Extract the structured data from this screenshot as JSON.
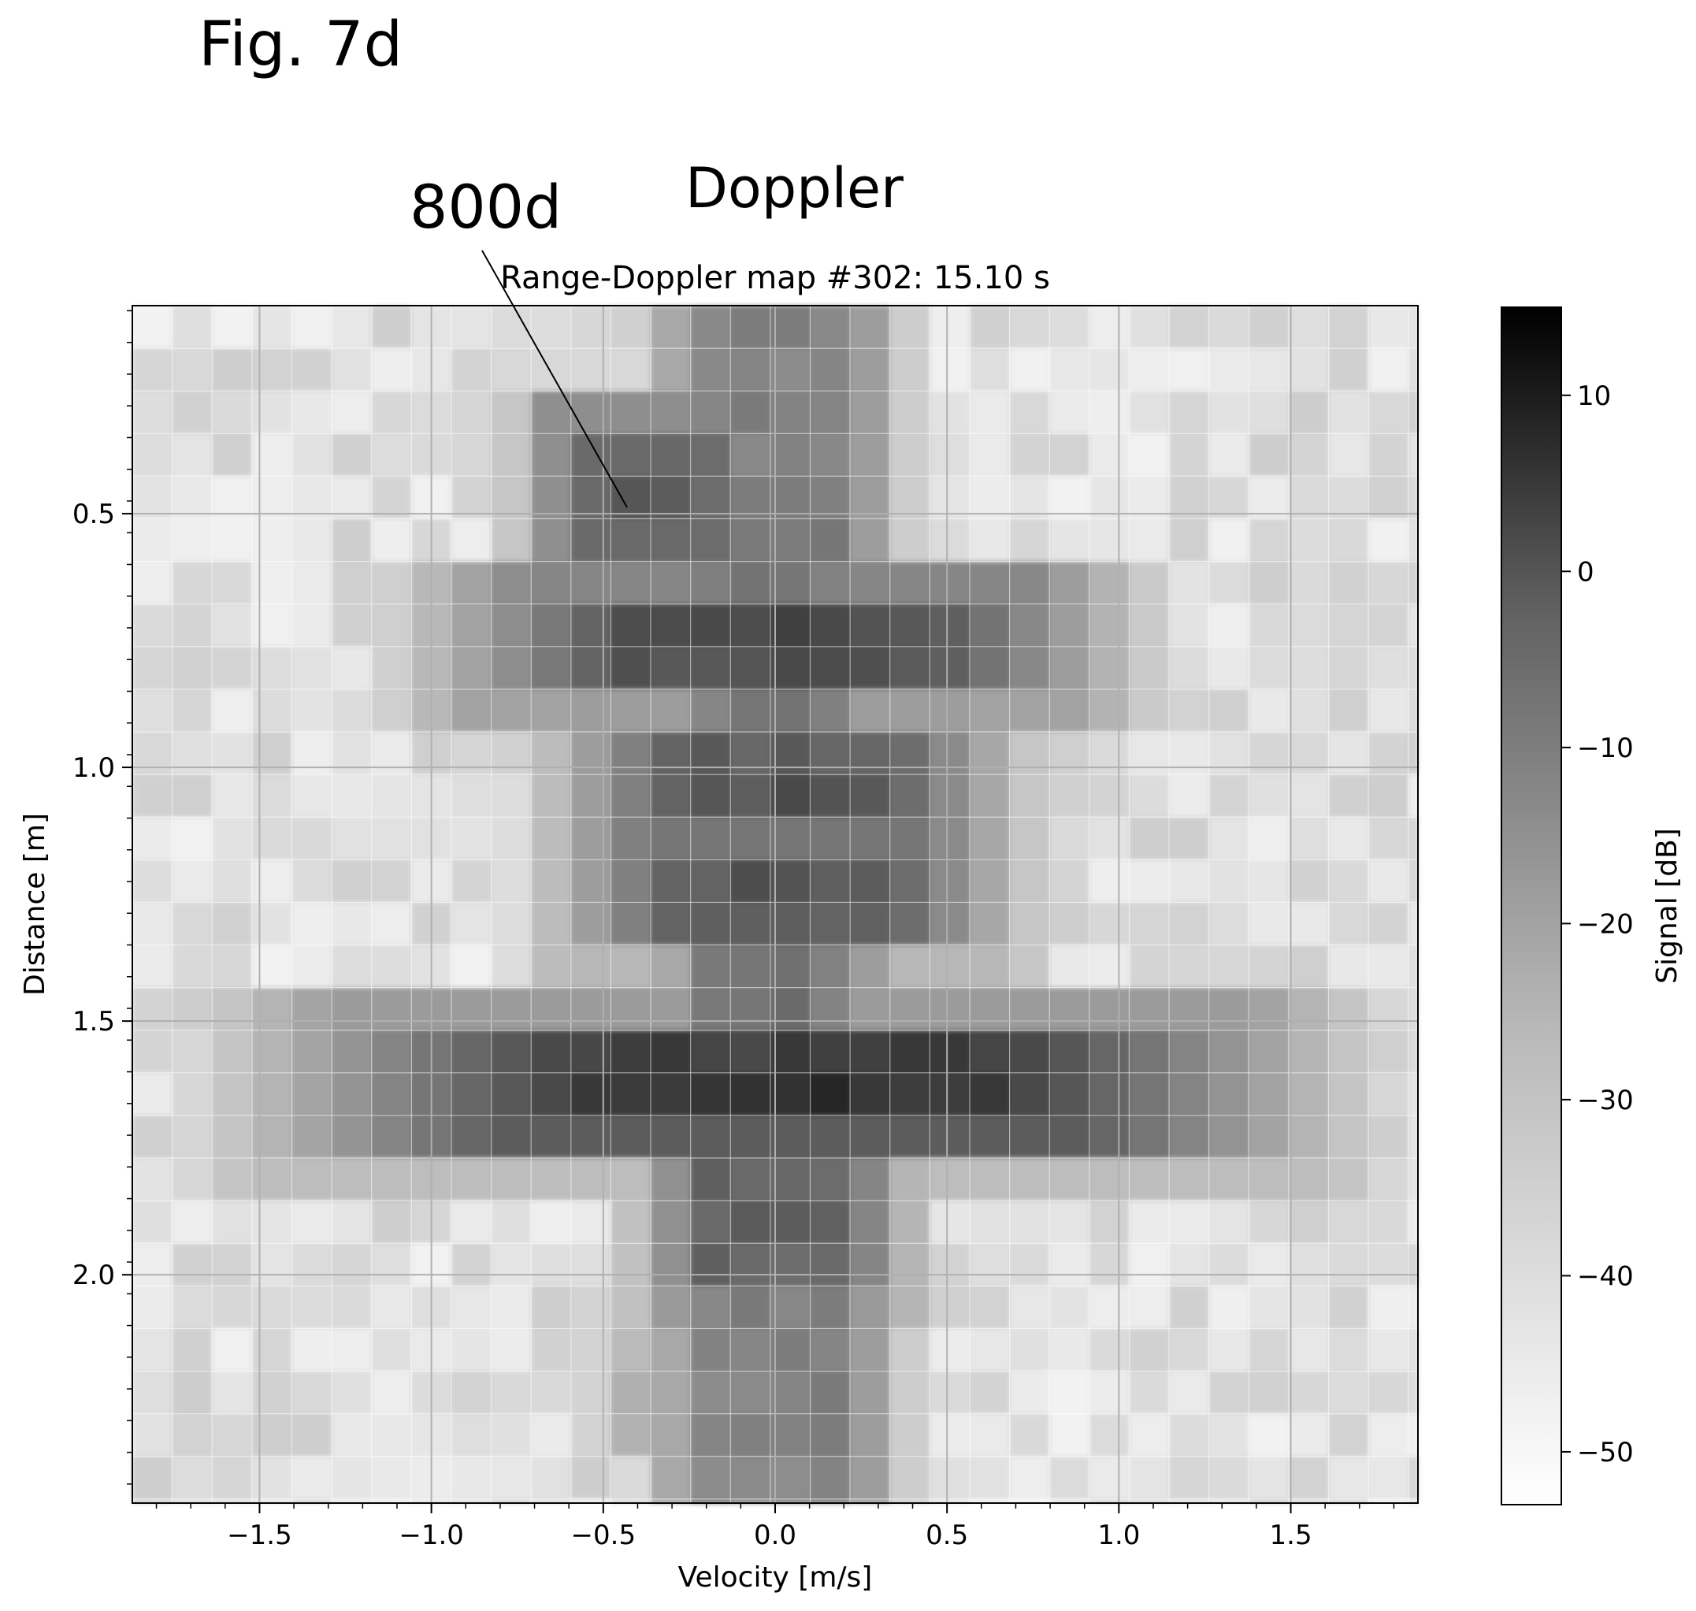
{
  "figure": {
    "label": "Fig. 7d",
    "reference_numeral": "800d",
    "heading": "Doppler"
  },
  "chart_data": {
    "type": "heatmap",
    "title": "Range-Doppler map #302:   15.10 s",
    "xlabel": "Velocity [m/s]",
    "ylabel": "Distance [m]",
    "colorbar_label": "Signal [dB]",
    "colormap": "grayscale (white = low, black = high)",
    "grid": true,
    "xlim": [
      -1.87,
      1.87
    ],
    "ylim": [
      2.45,
      0.09
    ],
    "y_inverted": true,
    "x_ticks": [
      -1.5,
      -1.0,
      -0.5,
      0.0,
      0.5,
      1.0,
      1.5
    ],
    "x_tick_labels": [
      "−1.5",
      "−1.0",
      "−0.5",
      "0.0",
      "0.5",
      "1.0",
      "1.5"
    ],
    "y_ticks": [
      0.5,
      1.0,
      1.5,
      2.0
    ],
    "y_tick_labels": [
      "0.5",
      "1.0",
      "1.5",
      "2.0"
    ],
    "colorbar_range": [
      -53,
      15
    ],
    "colorbar_ticks": [
      10,
      0,
      -10,
      -20,
      -30,
      -40,
      -50
    ],
    "colorbar_tick_labels": [
      "10",
      "0",
      "−10",
      "−20",
      "−30",
      "−40",
      "−50"
    ],
    "cell_width_mps": 0.116,
    "cell_height_m": 0.084,
    "background_level_db": -47,
    "features": [
      {
        "name": "static clutter column",
        "velocity_range": [
          -0.21,
          0.21
        ],
        "distance_range": [
          0.09,
          2.45
        ],
        "peak_db": -18
      },
      {
        "name": "target 800d",
        "velocity_range": [
          -0.56,
          -0.2
        ],
        "distance_range": [
          0.35,
          0.55
        ],
        "peak_db": -10
      },
      {
        "name": "reflector near 0.75 m",
        "velocity_range": [
          -0.45,
          0.45
        ],
        "distance_range": [
          0.68,
          0.82
        ],
        "peak_db": -5
      },
      {
        "name": "reflector near 1.05 m",
        "velocity_range": [
          -0.3,
          0.35
        ],
        "distance_range": [
          0.95,
          1.12
        ],
        "peak_db": -9
      },
      {
        "name": "reflector near 1.25 m",
        "velocity_range": [
          -0.3,
          0.35
        ],
        "distance_range": [
          1.18,
          1.32
        ],
        "peak_db": -9
      },
      {
        "name": "strong reflector near 1.62 m",
        "velocity_range": [
          -0.56,
          0.65
        ],
        "distance_range": [
          1.56,
          1.7
        ],
        "peak_db": 2
      },
      {
        "name": "reflector near 1.9 m",
        "velocity_range": [
          -0.2,
          0.2
        ],
        "distance_range": [
          1.8,
          2.0
        ],
        "peak_db": -10
      },
      {
        "name": "weak return near 2.25 m",
        "velocity_range": [
          -0.5,
          -0.25
        ],
        "distance_range": [
          2.15,
          2.35
        ],
        "peak_db": -32
      }
    ]
  }
}
